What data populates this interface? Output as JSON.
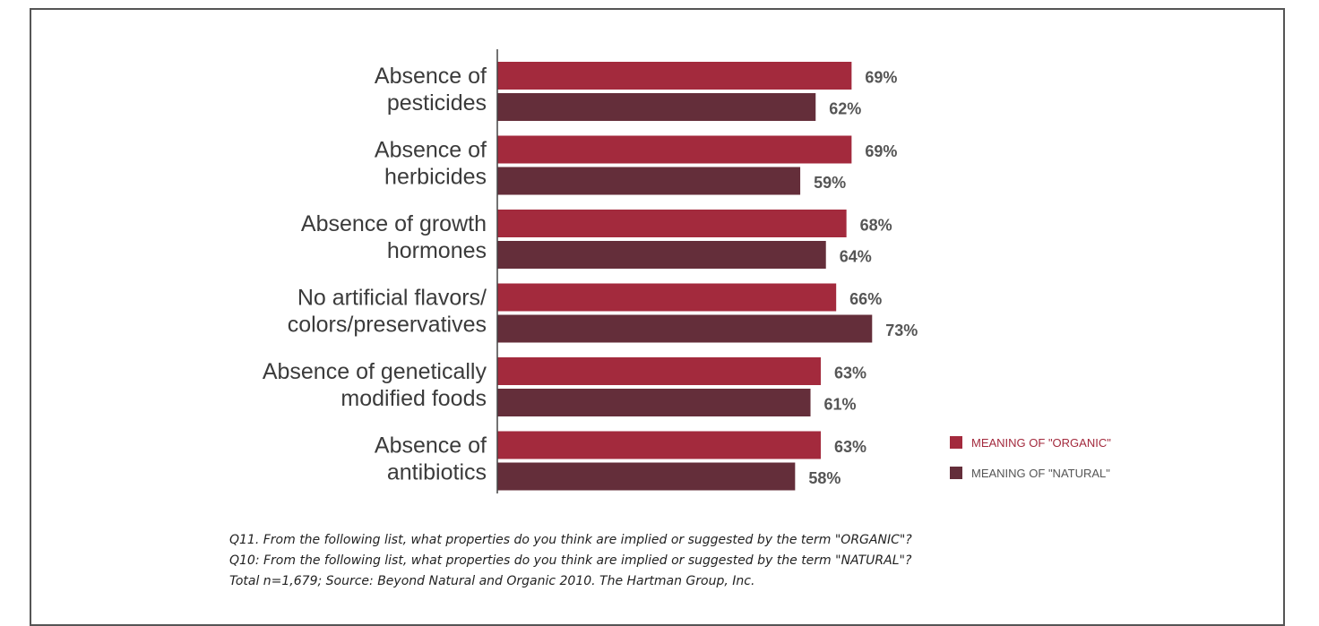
{
  "chart_data": {
    "type": "bar",
    "orientation": "horizontal",
    "categories": [
      [
        "Absence of",
        "pesticides"
      ],
      [
        "Absence of",
        "herbicides"
      ],
      [
        "Absence of growth",
        "hormones"
      ],
      [
        "No artificial flavors/",
        "colors/preservatives"
      ],
      [
        "Absence of genetically",
        "modified foods"
      ],
      [
        "Absence of",
        "antibiotics"
      ]
    ],
    "series": [
      {
        "name": "MEANING OF \"ORGANIC\"",
        "values": [
          69,
          69,
          68,
          66,
          63,
          63
        ],
        "color": "#a32a3d"
      },
      {
        "name": "MEANING OF \"NATURAL\"",
        "values": [
          62,
          59,
          64,
          73,
          61,
          58
        ],
        "color": "#642e3a"
      }
    ],
    "value_suffix": "%",
    "legend_position": "bottom-right",
    "legend_text_colors": [
      "#a32a3d",
      "#555555"
    ],
    "grid": false
  },
  "footnotes": [
    "Q11. From the following list, what properties do you think are implied or suggested by the term \"ORGANIC\"?",
    "Q10: From the following list, what properties do you think are implied or suggested by the term \"NATURAL\"?",
    "Total n=1,679; Source: Beyond Natural and Organic 2010. The Hartman Group, Inc."
  ]
}
